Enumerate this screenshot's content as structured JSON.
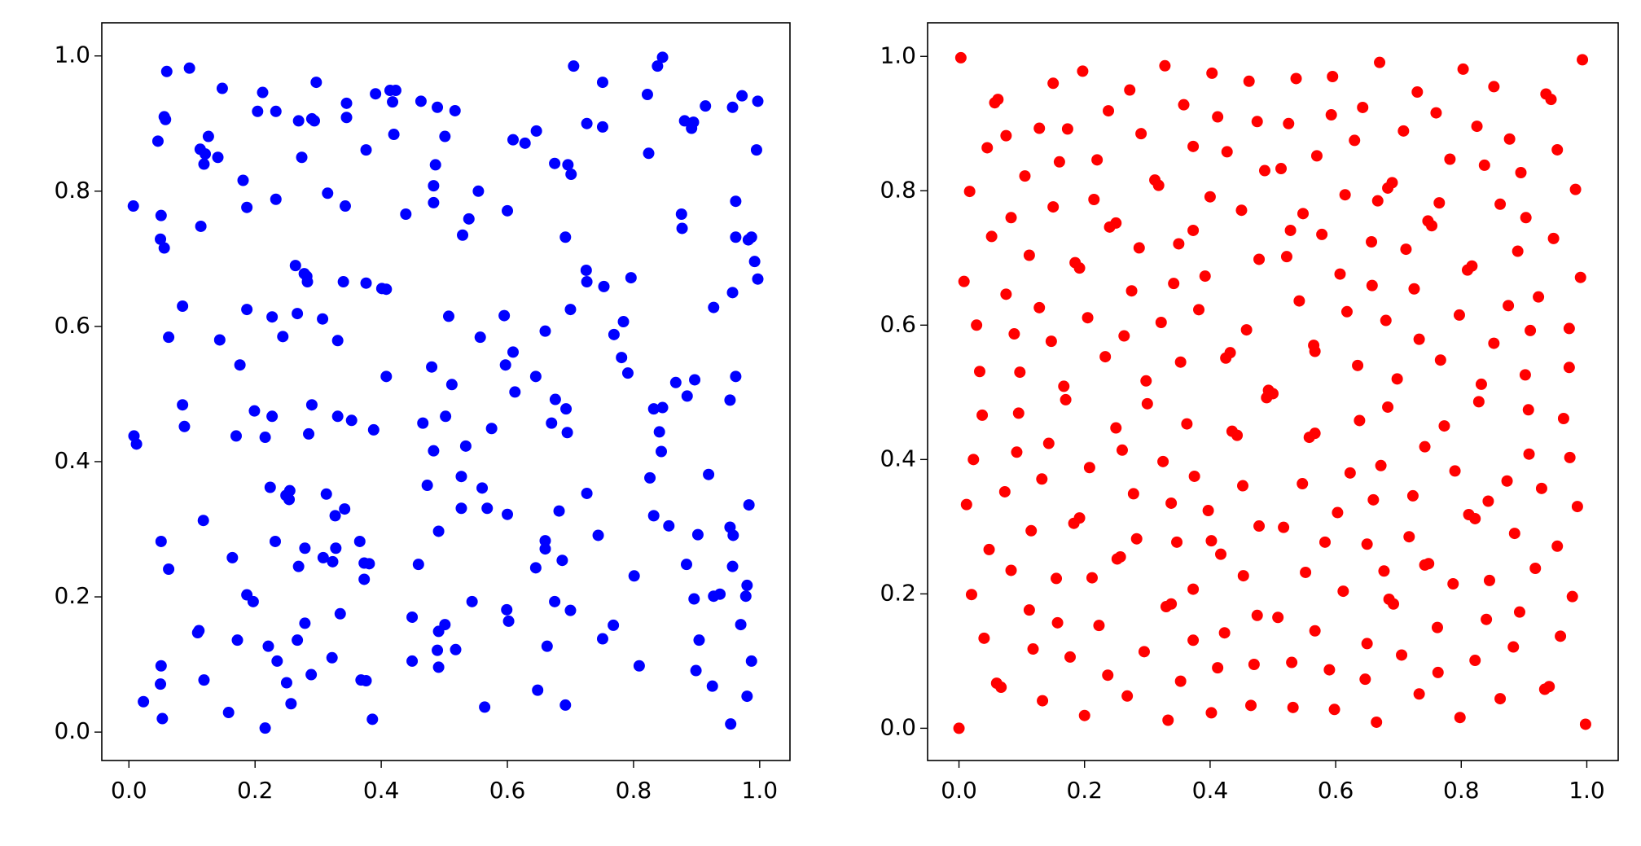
{
  "chart_data": [
    {
      "type": "scatter",
      "color": "#0000ff",
      "xlim": [
        -0.043,
        1.048
      ],
      "ylim": [
        -0.042,
        1.049
      ],
      "xticks": [
        {
          "value": 0,
          "label": "0.0"
        },
        0.2,
        0.4,
        0.6,
        0.8,
        {
          "value": 1,
          "label": "1.0"
        }
      ],
      "yticks": [
        {
          "value": 0,
          "label": "0.0"
        },
        0.2,
        0.4,
        0.6,
        0.8,
        {
          "value": 1,
          "label": "1.0"
        }
      ],
      "x": [
        0.007,
        0.06,
        0.096,
        0.056,
        0.058,
        0.046,
        0.148,
        0.113,
        0.121,
        0.126,
        0.141,
        0.119,
        0.051,
        0.05,
        0.056,
        0.114,
        0.181,
        0.187,
        0.212,
        0.204,
        0.233,
        0.233,
        0.269,
        0.294,
        0.297,
        0.29,
        0.274,
        0.315,
        0.345,
        0.345,
        0.343,
        0.376,
        0.391,
        0.414,
        0.423,
        0.418,
        0.42,
        0.439,
        0.463,
        0.489,
        0.517,
        0.486,
        0.483,
        0.483,
        0.501,
        0.554,
        0.539,
        0.529,
        0.6,
        0.609,
        0.628,
        0.646,
        0.675,
        0.696,
        0.701,
        0.705,
        0.726,
        0.751,
        0.751,
        0.822,
        0.838,
        0.846,
        0.824,
        0.876,
        0.877,
        0.881,
        0.892,
        0.895,
        0.914,
        0.957,
        0.972,
        0.997,
        0.995,
        0.962,
        0.962,
        0.982,
        0.987,
        0.692,
        0.725,
        0.726,
        0.753,
        0.796,
        0.992,
        0.997,
        0.957,
        0.927,
        0.7,
        0.784,
        0.769,
        0.781,
        0.791,
        0.595,
        0.609,
        0.597,
        0.612,
        0.645,
        0.66,
        0.557,
        0.507,
        0.512,
        0.48,
        0.401,
        0.408,
        0.376,
        0.34,
        0.264,
        0.278,
        0.283,
        0.282,
        0.267,
        0.307,
        0.227,
        0.244,
        0.187,
        0.331,
        0.144,
        0.063,
        0.085,
        0.176,
        0.408,
        0.897,
        0.867,
        0.962,
        0.885,
        0.953,
        0.676,
        0.693,
        0.67,
        0.695,
        0.832,
        0.846,
        0.841,
        0.844,
        0.085,
        0.088,
        0.008,
        0.012,
        0.199,
        0.227,
        0.216,
        0.17,
        0.29,
        0.285,
        0.331,
        0.353,
        0.388,
        0.466,
        0.502,
        0.483,
        0.575,
        0.534,
        0.527,
        0.56,
        0.527,
        0.568,
        0.6,
        0.473,
        0.919,
        0.826,
        0.726,
        0.224,
        0.249,
        0.255,
        0.254,
        0.313,
        0.342,
        0.327,
        0.118,
        0.832,
        0.856,
        0.983,
        0.953,
        0.958,
        0.744,
        0.682,
        0.902,
        0.491,
        0.051,
        0.232,
        0.366,
        0.279,
        0.328,
        0.308,
        0.323,
        0.66,
        0.66,
        0.164,
        0.373,
        0.381,
        0.269,
        0.459,
        0.687,
        0.645,
        0.063,
        0.373,
        0.957,
        0.884,
        0.801,
        0.98,
        0.978,
        0.927,
        0.937,
        0.896,
        0.675,
        0.7,
        0.544,
        0.187,
        0.197,
        0.599,
        0.602,
        0.449,
        0.335,
        0.279,
        0.501,
        0.491,
        0.768,
        0.97,
        0.111,
        0.109,
        0.751,
        0.172,
        0.267,
        0.904,
        0.221,
        0.518,
        0.489,
        0.663,
        0.449,
        0.235,
        0.322,
        0.051,
        0.987,
        0.809,
        0.491,
        0.119,
        0.289,
        0.899,
        0.368,
        0.376,
        0.25,
        0.05,
        0.925,
        0.648,
        0.98,
        0.023,
        0.257,
        0.692,
        0.564,
        0.158,
        0.053,
        0.386,
        0.216,
        0.954
      ],
      "values": [
        0.778,
        0.977,
        0.982,
        0.91,
        0.906,
        0.874,
        0.952,
        0.862,
        0.855,
        0.881,
        0.85,
        0.84,
        0.764,
        0.729,
        0.716,
        0.748,
        0.816,
        0.776,
        0.946,
        0.918,
        0.918,
        0.788,
        0.904,
        0.904,
        0.961,
        0.907,
        0.85,
        0.797,
        0.909,
        0.93,
        0.778,
        0.861,
        0.944,
        0.949,
        0.949,
        0.932,
        0.884,
        0.766,
        0.933,
        0.924,
        0.919,
        0.839,
        0.808,
        0.783,
        0.881,
        0.8,
        0.759,
        0.735,
        0.771,
        0.876,
        0.871,
        0.889,
        0.841,
        0.839,
        0.825,
        0.985,
        0.9,
        0.961,
        0.895,
        0.943,
        0.985,
        0.998,
        0.856,
        0.766,
        0.745,
        0.904,
        0.893,
        0.902,
        0.926,
        0.924,
        0.941,
        0.933,
        0.861,
        0.785,
        0.732,
        0.728,
        0.732,
        0.732,
        0.683,
        0.666,
        0.659,
        0.672,
        0.696,
        0.67,
        0.65,
        0.628,
        0.625,
        0.607,
        0.588,
        0.554,
        0.531,
        0.616,
        0.562,
        0.543,
        0.503,
        0.526,
        0.593,
        0.584,
        0.615,
        0.514,
        0.54,
        0.656,
        0.655,
        0.664,
        0.666,
        0.69,
        0.678,
        0.666,
        0.674,
        0.619,
        0.611,
        0.614,
        0.585,
        0.625,
        0.579,
        0.58,
        0.584,
        0.63,
        0.543,
        0.526,
        0.521,
        0.517,
        0.526,
        0.497,
        0.491,
        0.492,
        0.478,
        0.457,
        0.443,
        0.478,
        0.48,
        0.444,
        0.415,
        0.484,
        0.452,
        0.438,
        0.426,
        0.475,
        0.467,
        0.436,
        0.438,
        0.484,
        0.441,
        0.467,
        0.461,
        0.447,
        0.457,
        0.467,
        0.416,
        0.449,
        0.423,
        0.378,
        0.361,
        0.331,
        0.331,
        0.322,
        0.365,
        0.381,
        0.376,
        0.353,
        0.362,
        0.35,
        0.357,
        0.344,
        0.352,
        0.33,
        0.32,
        0.313,
        0.32,
        0.305,
        0.336,
        0.303,
        0.291,
        0.291,
        0.327,
        0.292,
        0.297,
        0.282,
        0.282,
        0.282,
        0.272,
        0.272,
        0.258,
        0.252,
        0.283,
        0.271,
        0.258,
        0.25,
        0.249,
        0.245,
        0.248,
        0.254,
        0.243,
        0.241,
        0.226,
        0.245,
        0.248,
        0.231,
        0.217,
        0.201,
        0.201,
        0.204,
        0.197,
        0.193,
        0.18,
        0.193,
        0.203,
        0.193,
        0.181,
        0.164,
        0.17,
        0.175,
        0.161,
        0.159,
        0.149,
        0.158,
        0.159,
        0.15,
        0.147,
        0.138,
        0.136,
        0.136,
        0.136,
        0.127,
        0.122,
        0.121,
        0.127,
        0.105,
        0.105,
        0.11,
        0.098,
        0.105,
        0.098,
        0.096,
        0.077,
        0.085,
        0.091,
        0.077,
        0.076,
        0.073,
        0.071,
        0.068,
        0.062,
        0.053,
        0.045,
        0.042,
        0.04,
        0.037,
        0.029,
        0.02,
        0.019,
        0.006,
        0.012
      ]
    },
    {
      "type": "scatter",
      "color": "#ff0000",
      "xlim": [
        -0.05,
        1.05
      ],
      "ylim": [
        -0.048,
        1.05
      ],
      "xticks": [
        {
          "value": 0,
          "label": "0.0"
        },
        0.2,
        0.4,
        0.6,
        0.8,
        {
          "value": 1,
          "label": "1.0"
        }
      ],
      "yticks": [
        {
          "value": 0,
          "label": "0.0"
        },
        0.2,
        0.4,
        0.6,
        0.8,
        {
          "value": 1,
          "label": "1.0"
        }
      ],
      "x": [
        0.003,
        0.993,
        0.15,
        0.197,
        0.328,
        0.403,
        0.462,
        0.537,
        0.595,
        0.67,
        0.803,
        0.852,
        0.935,
        0.943,
        0.062,
        0.057,
        0.358,
        0.412,
        0.475,
        0.525,
        0.593,
        0.643,
        0.73,
        0.76,
        0.238,
        0.272,
        0.045,
        0.075,
        0.128,
        0.29,
        0.373,
        0.427,
        0.63,
        0.708,
        0.825,
        0.877,
        0.782,
        0.837,
        0.953,
        0.017,
        0.105,
        0.16,
        0.22,
        0.173,
        0.312,
        0.318,
        0.4,
        0.487,
        0.513,
        0.57,
        0.615,
        0.683,
        0.69,
        0.765,
        0.895,
        0.982,
        0.15,
        0.215,
        0.45,
        0.548,
        0.667,
        0.083,
        0.24,
        0.25,
        0.373,
        0.287,
        0.528,
        0.578,
        0.712,
        0.747,
        0.753,
        0.862,
        0.903,
        0.947,
        0.052,
        0.112,
        0.185,
        0.192,
        0.35,
        0.478,
        0.522,
        0.657,
        0.81,
        0.817,
        0.89,
        0.99,
        0.008,
        0.275,
        0.342,
        0.392,
        0.607,
        0.658,
        0.725,
        0.075,
        0.128,
        0.382,
        0.542,
        0.618,
        0.68,
        0.797,
        0.875,
        0.923,
        0.028,
        0.205,
        0.322,
        0.458,
        0.972,
        0.088,
        0.147,
        0.263,
        0.733,
        0.852,
        0.91,
        0.565,
        0.567,
        0.432,
        0.425,
        0.233,
        0.353,
        0.635,
        0.767,
        0.698,
        0.832,
        0.902,
        0.033,
        0.097,
        0.298,
        0.167,
        0.493,
        0.5,
        0.49,
        0.972,
        0.17,
        0.3,
        0.683,
        0.907,
        0.828,
        0.037,
        0.095,
        0.363,
        0.567,
        0.558,
        0.638,
        0.773,
        0.963,
        0.25,
        0.435,
        0.443,
        0.742,
        0.143,
        0.26,
        0.908,
        0.873,
        0.023,
        0.092,
        0.208,
        0.325,
        0.672,
        0.79,
        0.973,
        0.623,
        0.375,
        0.132,
        0.547,
        0.928,
        0.073,
        0.278,
        0.452,
        0.723,
        0.66,
        0.338,
        0.603,
        0.843,
        0.985,
        0.012,
        0.397,
        0.183,
        0.192,
        0.478,
        0.517,
        0.812,
        0.822,
        0.115,
        0.885,
        0.283,
        0.402,
        0.347,
        0.583,
        0.65,
        0.953,
        0.048,
        0.717,
        0.257,
        0.252,
        0.417,
        0.748,
        0.742,
        0.677,
        0.918,
        0.083,
        0.453,
        0.212,
        0.552,
        0.155,
        0.373,
        0.612,
        0.845,
        0.787,
        0.977,
        0.02,
        0.685,
        0.692,
        0.338,
        0.33,
        0.475,
        0.508,
        0.112,
        0.893,
        0.157,
        0.223,
        0.762,
        0.84,
        0.567,
        0.423,
        0.958,
        0.04,
        0.373,
        0.65,
        0.883,
        0.118,
        0.295,
        0.705,
        0.177,
        0.822,
        0.53,
        0.47,
        0.412,
        0.59,
        0.763,
        0.237,
        0.647,
        0.353,
        0.06,
        0.067,
        0.733,
        0.268,
        0.933,
        0.94,
        0.862,
        0.133,
        0.465,
        0.532,
        0.598,
        0.402,
        0.2,
        0.798,
        0.333,
        0.665,
        0.998,
        0
      ],
      "values": [
        0.998,
        0.995,
        0.96,
        0.978,
        0.986,
        0.975,
        0.963,
        0.967,
        0.97,
        0.991,
        0.981,
        0.955,
        0.944,
        0.936,
        0.936,
        0.931,
        0.928,
        0.91,
        0.903,
        0.9,
        0.913,
        0.924,
        0.947,
        0.916,
        0.919,
        0.95,
        0.864,
        0.882,
        0.893,
        0.885,
        0.866,
        0.858,
        0.875,
        0.889,
        0.896,
        0.877,
        0.847,
        0.838,
        0.861,
        0.799,
        0.822,
        0.843,
        0.846,
        0.892,
        0.816,
        0.808,
        0.791,
        0.83,
        0.833,
        0.852,
        0.794,
        0.804,
        0.812,
        0.782,
        0.827,
        0.802,
        0.776,
        0.787,
        0.771,
        0.766,
        0.785,
        0.76,
        0.746,
        0.752,
        0.741,
        0.715,
        0.741,
        0.735,
        0.713,
        0.755,
        0.748,
        0.78,
        0.76,
        0.729,
        0.732,
        0.704,
        0.693,
        0.685,
        0.721,
        0.698,
        0.702,
        0.724,
        0.682,
        0.688,
        0.71,
        0.671,
        0.665,
        0.651,
        0.662,
        0.673,
        0.676,
        0.659,
        0.654,
        0.646,
        0.626,
        0.623,
        0.636,
        0.62,
        0.607,
        0.615,
        0.629,
        0.642,
        0.6,
        0.611,
        0.604,
        0.593,
        0.595,
        0.587,
        0.576,
        0.584,
        0.579,
        0.573,
        0.592,
        0.57,
        0.561,
        0.559,
        0.551,
        0.553,
        0.545,
        0.54,
        0.548,
        0.52,
        0.512,
        0.526,
        0.531,
        0.53,
        0.517,
        0.509,
        0.503,
        0.498,
        0.492,
        0.537,
        0.489,
        0.483,
        0.478,
        0.474,
        0.486,
        0.466,
        0.469,
        0.453,
        0.439,
        0.433,
        0.458,
        0.45,
        0.461,
        0.447,
        0.442,
        0.436,
        0.419,
        0.424,
        0.414,
        0.408,
        0.368,
        0.4,
        0.411,
        0.388,
        0.397,
        0.391,
        0.383,
        0.403,
        0.38,
        0.375,
        0.371,
        0.364,
        0.357,
        0.352,
        0.349,
        0.361,
        0.346,
        0.34,
        0.335,
        0.321,
        0.338,
        0.33,
        0.333,
        0.324,
        0.305,
        0.313,
        0.301,
        0.299,
        0.318,
        0.312,
        0.294,
        0.29,
        0.282,
        0.279,
        0.277,
        0.277,
        0.274,
        0.271,
        0.266,
        0.285,
        0.255,
        0.252,
        0.259,
        0.245,
        0.243,
        0.234,
        0.238,
        0.235,
        0.227,
        0.224,
        0.232,
        0.223,
        0.207,
        0.204,
        0.22,
        0.215,
        0.196,
        0.199,
        0.192,
        0.185,
        0.185,
        0.181,
        0.168,
        0.165,
        0.176,
        0.173,
        0.157,
        0.153,
        0.15,
        0.162,
        0.145,
        0.142,
        0.137,
        0.134,
        0.131,
        0.126,
        0.121,
        0.118,
        0.114,
        0.109,
        0.106,
        0.101,
        0.098,
        0.095,
        0.09,
        0.087,
        0.083,
        0.079,
        0.073,
        0.07,
        0.067,
        0.061,
        0.051,
        0.048,
        0.058,
        0.062,
        0.044,
        0.041,
        0.034,
        0.031,
        0.028,
        0.023,
        0.019,
        0.016,
        0.012,
        0.009,
        0.006,
        0
      ]
    }
  ]
}
